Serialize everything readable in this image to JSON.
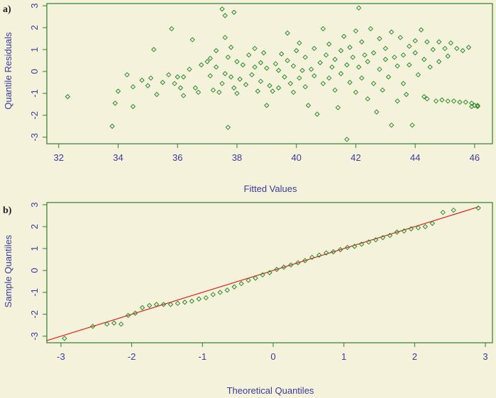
{
  "chart_data": [
    {
      "panel": "a)",
      "type": "scatter",
      "xlabel": "Fitted Values",
      "ylabel": "Quantile Residuals",
      "xlim": [
        31.6,
        46.6
      ],
      "ylim": [
        -3.3,
        3.1
      ],
      "xticks": [
        "32",
        "34",
        "36",
        "38",
        "40",
        "42",
        "44",
        "46"
      ],
      "yticks": [
        "-3",
        "-2",
        "-1",
        "0",
        "1",
        "2",
        "3"
      ],
      "marker_color": "#2b8a2b",
      "points": [
        [
          32.3,
          -1.15
        ],
        [
          33.8,
          -2.5
        ],
        [
          33.9,
          -1.45
        ],
        [
          34.0,
          -0.9
        ],
        [
          34.3,
          -0.15
        ],
        [
          34.5,
          -0.7
        ],
        [
          34.5,
          -1.6
        ],
        [
          34.8,
          -0.4
        ],
        [
          35.0,
          -0.65
        ],
        [
          35.1,
          -0.3
        ],
        [
          35.2,
          1.0
        ],
        [
          35.3,
          -1.05
        ],
        [
          35.5,
          -0.5
        ],
        [
          35.7,
          -0.15
        ],
        [
          35.8,
          1.95
        ],
        [
          35.9,
          -0.55
        ],
        [
          36.0,
          -0.25
        ],
        [
          36.1,
          -0.75
        ],
        [
          36.2,
          -0.25
        ],
        [
          36.2,
          -1.1
        ],
        [
          36.4,
          0.1
        ],
        [
          36.5,
          1.45
        ],
        [
          36.6,
          -0.75
        ],
        [
          36.7,
          -0.95
        ],
        [
          36.8,
          0.3
        ],
        [
          37.0,
          0.45
        ],
        [
          37.1,
          -0.2
        ],
        [
          37.1,
          0.6
        ],
        [
          37.2,
          -0.85
        ],
        [
          37.3,
          0.95
        ],
        [
          37.3,
          0.2
        ],
        [
          37.4,
          -0.95
        ],
        [
          37.5,
          2.85
        ],
        [
          37.5,
          -0.55
        ],
        [
          37.6,
          2.55
        ],
        [
          37.6,
          -0.1
        ],
        [
          37.6,
          1.55
        ],
        [
          37.7,
          0.65
        ],
        [
          37.7,
          -2.55
        ],
        [
          37.8,
          -0.25
        ],
        [
          37.8,
          1.1
        ],
        [
          37.9,
          2.7
        ],
        [
          37.9,
          -0.75
        ],
        [
          38.0,
          0.45
        ],
        [
          38.0,
          -1.0
        ],
        [
          38.1,
          -0.35
        ],
        [
          38.2,
          0.3
        ],
        [
          38.3,
          -0.6
        ],
        [
          38.4,
          0.75
        ],
        [
          38.5,
          -0.15
        ],
        [
          38.6,
          1.05
        ],
        [
          38.6,
          0.2
        ],
        [
          38.7,
          -0.9
        ],
        [
          38.8,
          0.4
        ],
        [
          38.8,
          -0.45
        ],
        [
          38.9,
          0.85
        ],
        [
          39.0,
          -1.55
        ],
        [
          39.0,
          0.15
        ],
        [
          39.1,
          -0.65
        ],
        [
          39.2,
          -0.9
        ],
        [
          39.3,
          0.35
        ],
        [
          39.4,
          0.05
        ],
        [
          39.4,
          -0.75
        ],
        [
          39.5,
          0.8
        ],
        [
          39.6,
          -0.25
        ],
        [
          39.7,
          1.75
        ],
        [
          39.7,
          0.5
        ],
        [
          39.8,
          -0.55
        ],
        [
          39.9,
          0.25
        ],
        [
          39.9,
          -0.95
        ],
        [
          40.0,
          0.95
        ],
        [
          40.1,
          -0.3
        ],
        [
          40.1,
          1.3
        ],
        [
          40.2,
          0.05
        ],
        [
          40.3,
          -0.7
        ],
        [
          40.3,
          0.65
        ],
        [
          40.4,
          -1.55
        ],
        [
          40.5,
          0.1
        ],
        [
          40.6,
          1.05
        ],
        [
          40.6,
          -0.2
        ],
        [
          40.7,
          -1.95
        ],
        [
          40.8,
          0.4
        ],
        [
          40.9,
          -0.55
        ],
        [
          40.9,
          1.95
        ],
        [
          41.0,
          0.75
        ],
        [
          41.1,
          -0.3
        ],
        [
          41.1,
          1.25
        ],
        [
          41.2,
          0.2
        ],
        [
          41.3,
          -0.85
        ],
        [
          41.3,
          0.55
        ],
        [
          41.4,
          -1.65
        ],
        [
          41.5,
          -0.1
        ],
        [
          41.5,
          0.95
        ],
        [
          41.6,
          1.6
        ],
        [
          41.7,
          -3.1
        ],
        [
          41.7,
          0.3
        ],
        [
          41.8,
          -0.5
        ],
        [
          41.8,
          1.1
        ],
        [
          41.9,
          0.65
        ],
        [
          42.0,
          -0.95
        ],
        [
          42.0,
          1.85
        ],
        [
          42.1,
          2.9
        ],
        [
          42.1,
          0.2
        ],
        [
          42.2,
          -0.3
        ],
        [
          42.2,
          1.35
        ],
        [
          42.3,
          0.75
        ],
        [
          42.4,
          -1.25
        ],
        [
          42.4,
          0.45
        ],
        [
          42.5,
          1.95
        ],
        [
          42.6,
          -0.55
        ],
        [
          42.6,
          0.85
        ],
        [
          42.7,
          -1.85
        ],
        [
          42.8,
          1.5
        ],
        [
          42.8,
          0.1
        ],
        [
          42.9,
          -0.85
        ],
        [
          43.0,
          1.05
        ],
        [
          43.0,
          0.55
        ],
        [
          43.1,
          -0.25
        ],
        [
          43.2,
          1.8
        ],
        [
          43.2,
          -2.45
        ],
        [
          43.3,
          0.65
        ],
        [
          43.4,
          -1.35
        ],
        [
          43.4,
          0.25
        ],
        [
          43.5,
          1.55
        ],
        [
          43.6,
          -0.55
        ],
        [
          43.6,
          0.75
        ],
        [
          43.7,
          -1.05
        ],
        [
          43.8,
          1.15
        ],
        [
          43.8,
          0.3
        ],
        [
          43.9,
          -2.45
        ],
        [
          44.0,
          1.4
        ],
        [
          44.0,
          0.85
        ],
        [
          44.1,
          -0.15
        ],
        [
          44.2,
          1.9
        ],
        [
          44.3,
          -1.15
        ],
        [
          44.3,
          0.55
        ],
        [
          44.4,
          1.35
        ],
        [
          44.4,
          -1.25
        ],
        [
          44.5,
          0.2
        ],
        [
          44.6,
          1.0
        ],
        [
          44.7,
          -1.35
        ],
        [
          44.8,
          1.35
        ],
        [
          44.8,
          0.45
        ],
        [
          44.9,
          -1.3
        ],
        [
          45.0,
          1.05
        ],
        [
          45.1,
          -1.35
        ],
        [
          45.1,
          0.7
        ],
        [
          45.2,
          1.3
        ],
        [
          45.3,
          -1.35
        ],
        [
          45.4,
          1.05
        ],
        [
          45.5,
          -1.4
        ],
        [
          45.6,
          0.95
        ],
        [
          45.7,
          -1.4
        ],
        [
          45.8,
          1.1
        ],
        [
          45.9,
          -1.45
        ],
        [
          45.9,
          -1.6
        ],
        [
          46.0,
          -1.55
        ],
        [
          46.1,
          -1.55
        ],
        [
          46.1,
          -1.6
        ]
      ]
    },
    {
      "panel": "b)",
      "type": "scatter",
      "xlabel": "Theoretical Quantiles",
      "ylabel": "Sample Quantiles",
      "xlim": [
        -3.2,
        3.1
      ],
      "ylim": [
        -3.3,
        3.1
      ],
      "xticks": [
        "-3",
        "-2",
        "-1",
        "0",
        "1",
        "2",
        "3"
      ],
      "yticks": [
        "-3",
        "-2",
        "-1",
        "0",
        "1",
        "2",
        "3"
      ],
      "marker_color": "#2b8a2b",
      "reference_line": {
        "color": "#e02020",
        "from": [
          -3.2,
          -3.2
        ],
        "to": [
          2.9,
          2.9
        ]
      },
      "points": [
        [
          -2.95,
          -3.1
        ],
        [
          -2.55,
          -2.55
        ],
        [
          -2.35,
          -2.45
        ],
        [
          -2.25,
          -2.4
        ],
        [
          -2.15,
          -2.45
        ],
        [
          -2.05,
          -2.05
        ],
        [
          -1.95,
          -1.95
        ],
        [
          -1.85,
          -1.7
        ],
        [
          -1.75,
          -1.6
        ],
        [
          -1.65,
          -1.55
        ],
        [
          -1.55,
          -1.55
        ],
        [
          -1.45,
          -1.55
        ],
        [
          -1.35,
          -1.5
        ],
        [
          -1.25,
          -1.45
        ],
        [
          -1.15,
          -1.4
        ],
        [
          -1.05,
          -1.3
        ],
        [
          -0.95,
          -1.25
        ],
        [
          -0.85,
          -1.1
        ],
        [
          -0.75,
          -1.0
        ],
        [
          -0.65,
          -0.9
        ],
        [
          -0.55,
          -0.75
        ],
        [
          -0.45,
          -0.6
        ],
        [
          -0.35,
          -0.45
        ],
        [
          -0.25,
          -0.35
        ],
        [
          -0.15,
          -0.2
        ],
        [
          -0.05,
          -0.1
        ],
        [
          0.05,
          0.05
        ],
        [
          0.15,
          0.15
        ],
        [
          0.25,
          0.25
        ],
        [
          0.35,
          0.35
        ],
        [
          0.45,
          0.45
        ],
        [
          0.55,
          0.6
        ],
        [
          0.65,
          0.7
        ],
        [
          0.75,
          0.8
        ],
        [
          0.85,
          0.85
        ],
        [
          0.95,
          0.95
        ],
        [
          1.05,
          1.05
        ],
        [
          1.15,
          1.1
        ],
        [
          1.25,
          1.2
        ],
        [
          1.35,
          1.3
        ],
        [
          1.45,
          1.4
        ],
        [
          1.55,
          1.5
        ],
        [
          1.65,
          1.6
        ],
        [
          1.75,
          1.75
        ],
        [
          1.85,
          1.8
        ],
        [
          1.95,
          1.9
        ],
        [
          2.05,
          1.95
        ],
        [
          2.15,
          2.0
        ],
        [
          2.25,
          2.15
        ],
        [
          2.4,
          2.65
        ],
        [
          2.55,
          2.75
        ],
        [
          2.9,
          2.85
        ]
      ]
    }
  ]
}
